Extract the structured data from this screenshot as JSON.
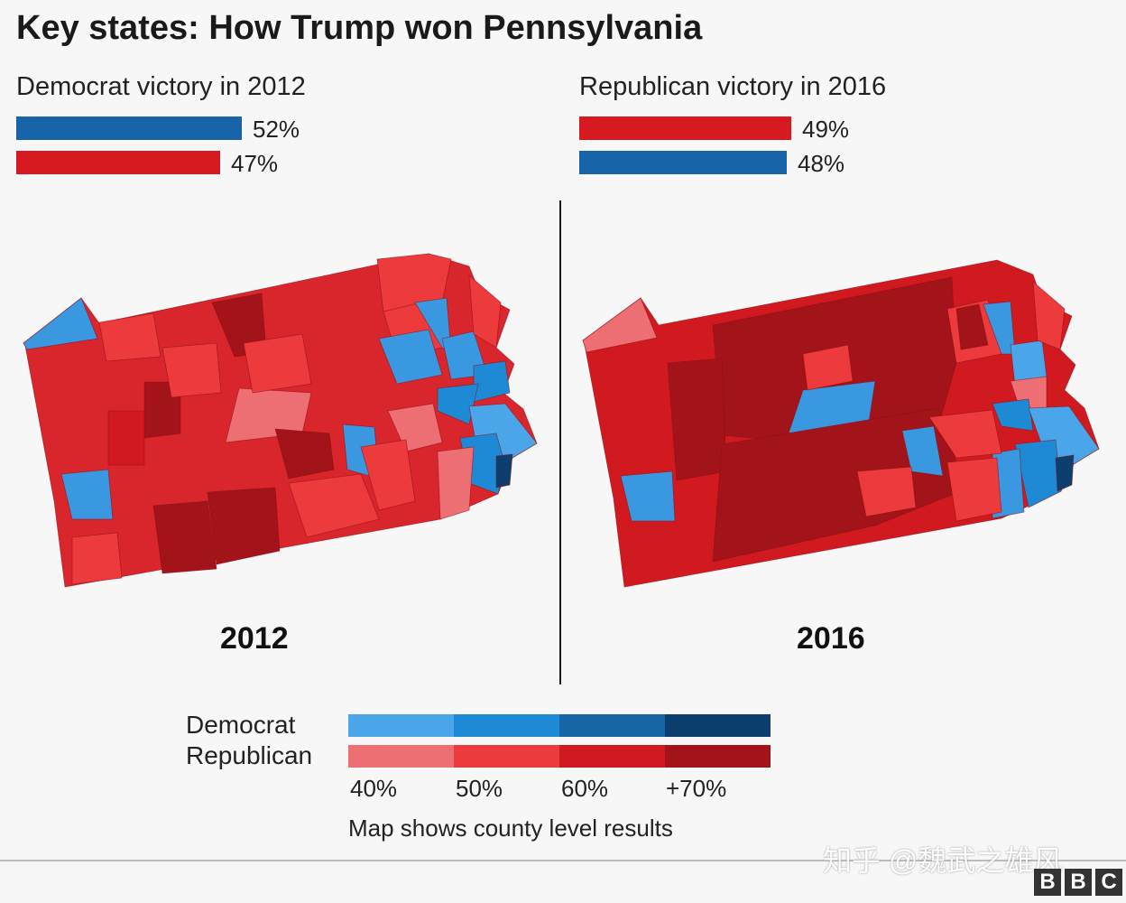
{
  "title": "Key states: How Trump won Pennsylvania",
  "left": {
    "heading": "Democrat victory in 2012",
    "bars": [
      {
        "party": "Democrat",
        "value": 52,
        "label": "52%",
        "color": "#1764a8"
      },
      {
        "party": "Republican",
        "value": 47,
        "label": "47%",
        "color": "#d71920"
      }
    ],
    "year": "2012"
  },
  "right": {
    "heading": "Republican victory in 2016",
    "bars": [
      {
        "party": "Republican",
        "value": 49,
        "label": "49%",
        "color": "#d71920"
      },
      {
        "party": "Democrat",
        "value": 48,
        "label": "48%",
        "color": "#1764a8"
      }
    ],
    "year": "2016"
  },
  "legend": {
    "democrat_label": "Democrat",
    "republican_label": "Republican",
    "democrat_colors": [
      "#4aa6e8",
      "#1e8ad6",
      "#1666a8",
      "#0d3f6e"
    ],
    "republican_colors": [
      "#ee6f73",
      "#ec3a3d",
      "#d11a20",
      "#a3131a"
    ],
    "ticks": [
      "40%",
      "50%",
      "60%",
      "+70%"
    ],
    "note": "Map shows county level results"
  },
  "watermark": "知乎 @魏武之雄风",
  "brand": [
    "B",
    "B",
    "C"
  ]
}
